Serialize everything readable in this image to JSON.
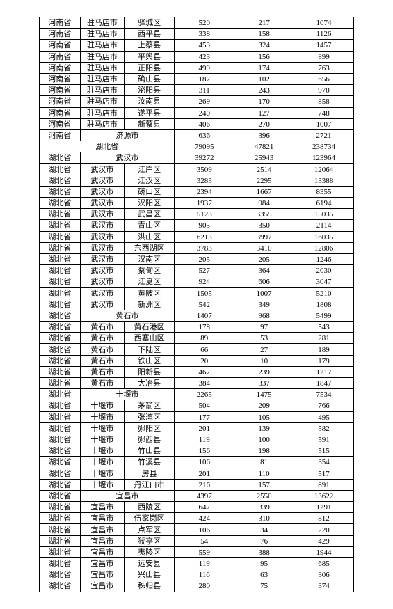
{
  "rows": [
    [
      "河南省",
      "驻马店市",
      "驿城区",
      "520",
      "217",
      "1074"
    ],
    [
      "河南省",
      "驻马店市",
      "西平县",
      "338",
      "158",
      "1126"
    ],
    [
      "河南省",
      "驻马店市",
      "上蔡县",
      "453",
      "324",
      "1457"
    ],
    [
      "河南省",
      "驻马店市",
      "平舆县",
      "423",
      "156",
      "899"
    ],
    [
      "河南省",
      "驻马店市",
      "正阳县",
      "499",
      "174",
      "763"
    ],
    [
      "河南省",
      "驻马店市",
      "确山县",
      "187",
      "102",
      "656"
    ],
    [
      "河南省",
      "驻马店市",
      "泌阳县",
      "311",
      "243",
      "970"
    ],
    [
      "河南省",
      "驻马店市",
      "汝南县",
      "269",
      "170",
      "858"
    ],
    [
      "河南省",
      "驻马店市",
      "遂平县",
      "240",
      "127",
      "748"
    ],
    [
      "河南省",
      "驻马店市",
      "新蔡县",
      "406",
      "270",
      "1007"
    ],
    [
      "河南省",
      {
        "span": 2,
        "text": "济源市"
      },
      "636",
      "396",
      "2721"
    ],
    [
      {
        "span": 3,
        "text": "湖北省"
      },
      "79095",
      "47821",
      "238734"
    ],
    [
      "湖北省",
      {
        "span": 2,
        "text": "武汉市"
      },
      "39272",
      "25943",
      "123964"
    ],
    [
      "湖北省",
      "武汉市",
      "江岸区",
      "3509",
      "2514",
      "12064"
    ],
    [
      "湖北省",
      "武汉市",
      "江汉区",
      "3283",
      "2295",
      "13388"
    ],
    [
      "湖北省",
      "武汉市",
      "硚口区",
      "2394",
      "1667",
      "8355"
    ],
    [
      "湖北省",
      "武汉市",
      "汉阳区",
      "1937",
      "984",
      "6194"
    ],
    [
      "湖北省",
      "武汉市",
      "武昌区",
      "5123",
      "3355",
      "15035"
    ],
    [
      "湖北省",
      "武汉市",
      "青山区",
      "905",
      "350",
      "2114"
    ],
    [
      "湖北省",
      "武汉市",
      "洪山区",
      "6213",
      "3997",
      "16035"
    ],
    [
      "湖北省",
      "武汉市",
      "东西湖区",
      "3783",
      "3410",
      "12806"
    ],
    [
      "湖北省",
      "武汉市",
      "汉南区",
      "205",
      "205",
      "1246"
    ],
    [
      "湖北省",
      "武汉市",
      "蔡甸区",
      "527",
      "364",
      "2030"
    ],
    [
      "湖北省",
      "武汉市",
      "江夏区",
      "924",
      "606",
      "3047"
    ],
    [
      "湖北省",
      "武汉市",
      "黄陂区",
      "1505",
      "1007",
      "5210"
    ],
    [
      "湖北省",
      "武汉市",
      "新洲区",
      "542",
      "349",
      "1808"
    ],
    [
      "湖北省",
      {
        "span": 2,
        "text": "黄石市"
      },
      "1407",
      "968",
      "5499"
    ],
    [
      "湖北省",
      "黄石市",
      "黄石港区",
      "178",
      "97",
      "543"
    ],
    [
      "湖北省",
      "黄石市",
      "西塞山区",
      "89",
      "53",
      "281"
    ],
    [
      "湖北省",
      "黄石市",
      "下陆区",
      "66",
      "27",
      "189"
    ],
    [
      "湖北省",
      "黄石市",
      "铁山区",
      "20",
      "10",
      "179"
    ],
    [
      "湖北省",
      "黄石市",
      "阳新县",
      "467",
      "239",
      "1217"
    ],
    [
      "湖北省",
      "黄石市",
      "大冶县",
      "384",
      "337",
      "1847"
    ],
    [
      "湖北省",
      {
        "span": 2,
        "text": "十堰市"
      },
      "2265",
      "1475",
      "7534"
    ],
    [
      "湖北省",
      "十堰市",
      "茅箭区",
      "504",
      "209",
      "766"
    ],
    [
      "湖北省",
      "十堰市",
      "张湾区",
      "177",
      "105",
      "495"
    ],
    [
      "湖北省",
      "十堰市",
      "郧阳区",
      "201",
      "139",
      "582"
    ],
    [
      "湖北省",
      "十堰市",
      "郧西县",
      "119",
      "100",
      "591"
    ],
    [
      "湖北省",
      "十堰市",
      "竹山县",
      "156",
      "198",
      "515"
    ],
    [
      "湖北省",
      "十堰市",
      "竹溪县",
      "106",
      "81",
      "354"
    ],
    [
      "湖北省",
      "十堰市",
      "房县",
      "201",
      "110",
      "517"
    ],
    [
      "湖北省",
      "十堰市",
      "丹江口市",
      "216",
      "157",
      "891"
    ],
    [
      "湖北省",
      {
        "span": 2,
        "text": "宜昌市"
      },
      "4397",
      "2550",
      "13622"
    ],
    [
      "湖北省",
      "宜昌市",
      "西陵区",
      "647",
      "339",
      "1291"
    ],
    [
      "湖北省",
      "宜昌市",
      "伍家岗区",
      "424",
      "310",
      "812"
    ],
    [
      "湖北省",
      "宜昌市",
      "点军区",
      "106",
      "34",
      "220"
    ],
    [
      "湖北省",
      "宜昌市",
      "猇亭区",
      "54",
      "76",
      "429"
    ],
    [
      "湖北省",
      "宜昌市",
      "夷陵区",
      "559",
      "388",
      "1944"
    ],
    [
      "湖北省",
      "宜昌市",
      "远安县",
      "119",
      "95",
      "685"
    ],
    [
      "湖北省",
      "宜昌市",
      "兴山县",
      "116",
      "63",
      "306"
    ],
    [
      "湖北省",
      "宜昌市",
      "秭归县",
      "280",
      "75",
      "374"
    ]
  ]
}
